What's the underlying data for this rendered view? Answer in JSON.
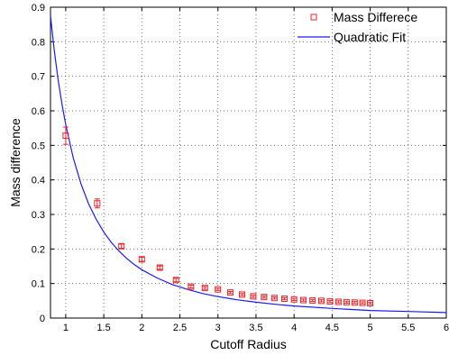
{
  "chart_data": {
    "type": "scatter",
    "title": "",
    "xlabel": "Cutoff Radius",
    "ylabel": "Mass difference",
    "xlim": [
      0.8,
      6
    ],
    "ylim": [
      0,
      0.9
    ],
    "x_ticks": [
      "1",
      "1.5",
      "2",
      "2.5",
      "3",
      "3.5",
      "4",
      "4.5",
      "5",
      "5.5",
      "6"
    ],
    "y_ticks": [
      "0",
      "0.1",
      "0.2",
      "0.3",
      "0.4",
      "0.5",
      "0.6",
      "0.7",
      "0.8",
      "0.9"
    ],
    "grid": true,
    "legend_position": "top-right",
    "series": [
      {
        "name": "Mass Differece",
        "kind": "markers-with-errorbars",
        "color": "#e8262b",
        "marker": "square",
        "points": [
          {
            "x": 1.0,
            "y": 0.528,
            "err": 0.025
          },
          {
            "x": 1.414,
            "y": 0.332,
            "err": 0.013
          },
          {
            "x": 1.732,
            "y": 0.208,
            "err": 0.006
          },
          {
            "x": 2.0,
            "y": 0.17,
            "err": 0.006
          },
          {
            "x": 2.236,
            "y": 0.146,
            "err": 0.005
          },
          {
            "x": 2.449,
            "y": 0.11,
            "err": 0.005
          },
          {
            "x": 2.646,
            "y": 0.091,
            "err": 0.004
          },
          {
            "x": 2.828,
            "y": 0.087,
            "err": 0.004
          },
          {
            "x": 3.0,
            "y": 0.083,
            "err": 0.003
          },
          {
            "x": 3.162,
            "y": 0.074,
            "err": 0.003
          },
          {
            "x": 3.317,
            "y": 0.068,
            "err": 0.003
          },
          {
            "x": 3.464,
            "y": 0.063,
            "err": 0.003
          },
          {
            "x": 3.606,
            "y": 0.061,
            "err": 0.003
          },
          {
            "x": 3.742,
            "y": 0.058,
            "err": 0.003
          },
          {
            "x": 3.873,
            "y": 0.056,
            "err": 0.003
          },
          {
            "x": 4.0,
            "y": 0.054,
            "err": 0.003
          },
          {
            "x": 4.123,
            "y": 0.052,
            "err": 0.003
          },
          {
            "x": 4.243,
            "y": 0.051,
            "err": 0.003
          },
          {
            "x": 4.359,
            "y": 0.05,
            "err": 0.003
          },
          {
            "x": 4.472,
            "y": 0.048,
            "err": 0.003
          },
          {
            "x": 4.583,
            "y": 0.047,
            "err": 0.003
          },
          {
            "x": 4.69,
            "y": 0.046,
            "err": 0.003
          },
          {
            "x": 4.796,
            "y": 0.045,
            "err": 0.003
          },
          {
            "x": 4.899,
            "y": 0.044,
            "err": 0.003
          },
          {
            "x": 5.0,
            "y": 0.043,
            "err": 0.003
          }
        ]
      },
      {
        "name": "Quadratic Fit",
        "kind": "line",
        "color": "#1a1aff",
        "x": [
          0.8,
          0.85,
          0.9,
          0.95,
          1.0,
          1.1,
          1.2,
          1.3,
          1.4,
          1.5,
          1.6,
          1.7,
          1.8,
          1.9,
          2.0,
          2.2,
          2.4,
          2.6,
          2.8,
          3.0,
          3.25,
          3.5,
          3.75,
          4.0,
          4.5,
          5.0,
          5.5,
          6.0
        ],
        "y": [
          0.875,
          0.775,
          0.691,
          0.62,
          0.56,
          0.463,
          0.389,
          0.331,
          0.286,
          0.249,
          0.219,
          0.194,
          0.173,
          0.155,
          0.14,
          0.116,
          0.097,
          0.083,
          0.071,
          0.062,
          0.053,
          0.046,
          0.04,
          0.035,
          0.028,
          0.022,
          0.019,
          0.016
        ]
      }
    ]
  }
}
